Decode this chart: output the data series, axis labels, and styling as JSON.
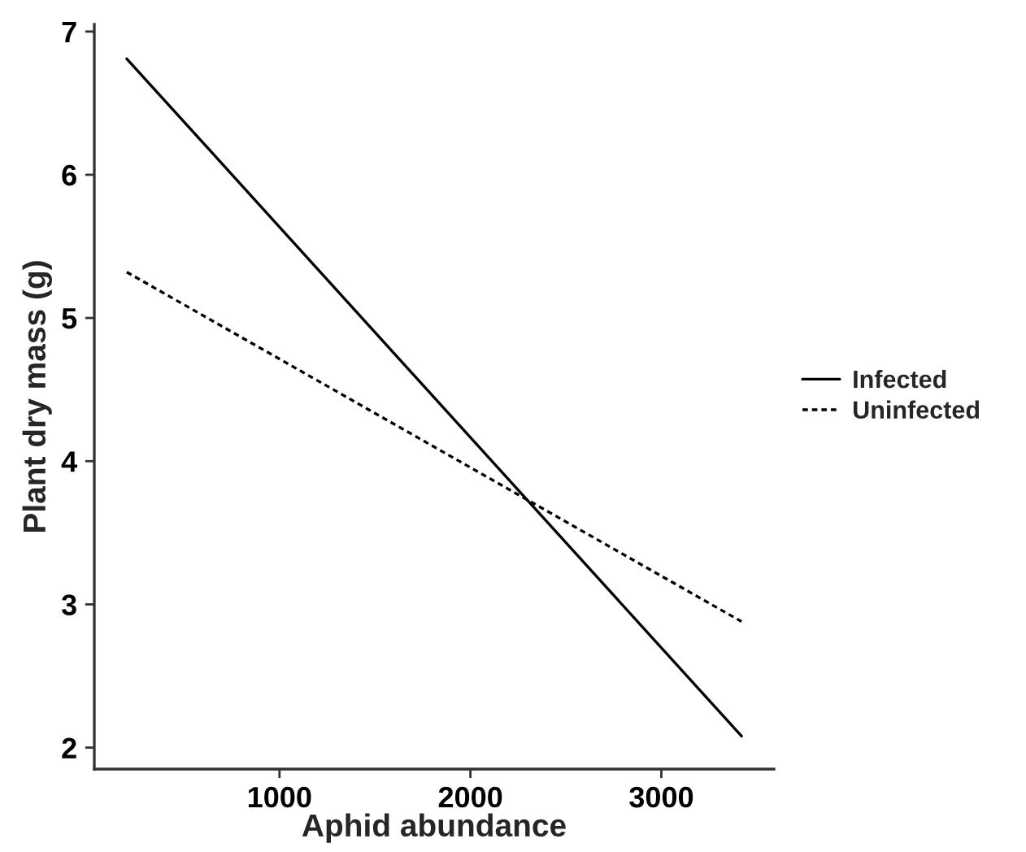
{
  "chart_data": {
    "type": "line",
    "xlabel": "Aphid abundance",
    "ylabel": "Plant dry mass (g)",
    "series": [
      {
        "name": "Infected",
        "color": "#000000",
        "line_style": "solid",
        "values": [
          6.81,
          2.08
        ]
      },
      {
        "name": "Uninfected",
        "color": "#000000",
        "line_style": "dotted",
        "values": [
          5.32,
          2.88
        ]
      }
    ],
    "x": [
      200,
      3420
    ],
    "xlim": [
      30,
      3590
    ],
    "ylim": [
      1.85,
      7.05
    ],
    "xticks": [
      1000,
      2000,
      3000
    ],
    "yticks": [
      2,
      3,
      4,
      5,
      6,
      7
    ],
    "grid": false,
    "legend": "right",
    "marker": "none"
  }
}
